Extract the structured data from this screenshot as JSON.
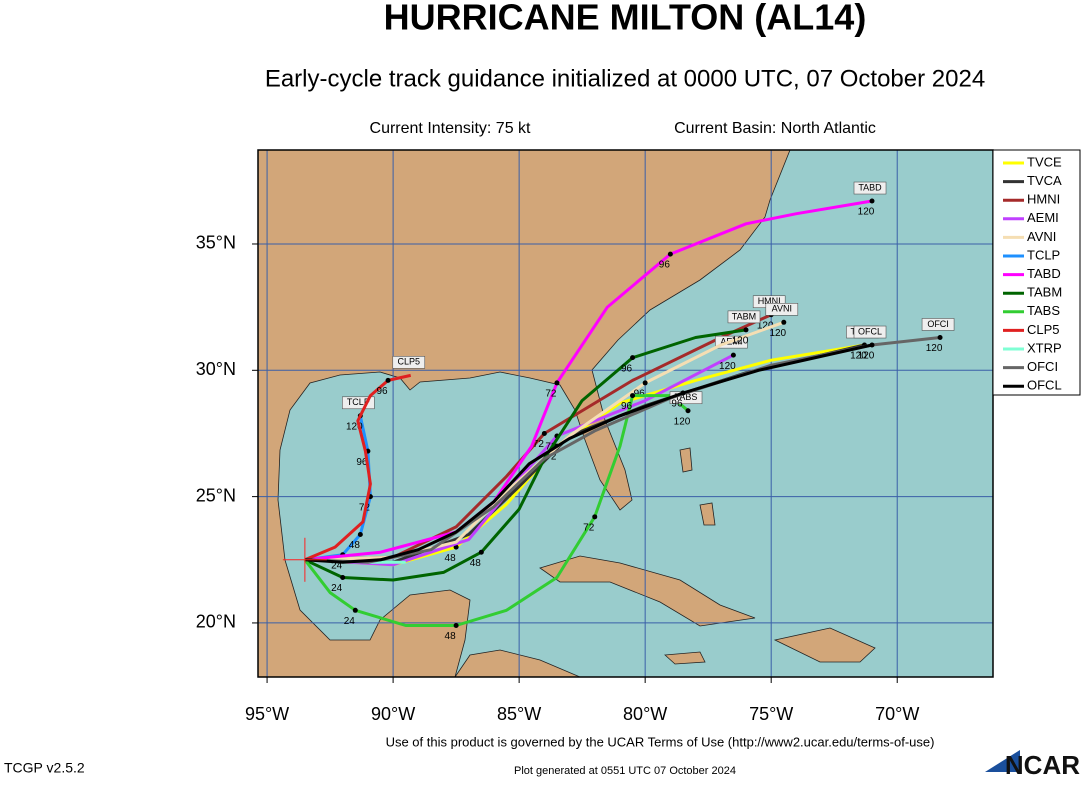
{
  "header": {
    "title": "HURRICANE MILTON (AL14)",
    "subtitle": "Early-cycle track guidance initialized at 0000 UTC, 07 October 2024",
    "intensity": "Current Intensity: 75 kt",
    "basin": "Current Basin: North Atlantic"
  },
  "footer": {
    "terms": "Use of this product is governed by the UCAR Terms of Use (http://www2.ucar.edu/terms-of-use)",
    "version": "TCGP v2.5.2",
    "generated": "Plot generated at 0551 UTC  07 October 2024",
    "logo": "NCAR"
  },
  "chart_data": {
    "type": "track-map",
    "xlim": [
      -95.36,
      -66.2
    ],
    "ylim": [
      17.86,
      38.72
    ],
    "xticks": [
      {
        "value": -95,
        "label": "95°W"
      },
      {
        "value": -90,
        "label": "90°W"
      },
      {
        "value": -85,
        "label": "85°W"
      },
      {
        "value": -80,
        "label": "80°W"
      },
      {
        "value": -75,
        "label": "75°W"
      },
      {
        "value": -70,
        "label": "70°W"
      }
    ],
    "yticks": [
      {
        "value": 20,
        "label": "20°N"
      },
      {
        "value": 25,
        "label": "25°N"
      },
      {
        "value": 30,
        "label": "30°N"
      },
      {
        "value": 35,
        "label": "35°N"
      }
    ],
    "grid": true,
    "legend": "upper right",
    "current_position": {
      "lon": -93.5,
      "lat": 22.5,
      "color": "#ff2020"
    },
    "series": [
      {
        "name": "TVCE",
        "color": "#ffff00",
        "map_label": false,
        "lon": [
          -93.5,
          -90,
          -87.5,
          -85.5,
          -83.5,
          -81,
          -78,
          -75,
          -71.3
        ],
        "lat": [
          22.5,
          22.3,
          23,
          24.7,
          27,
          28.7,
          29.6,
          30.4,
          31.0
        ],
        "hours": [
          null,
          null,
          48,
          null,
          72,
          null,
          null,
          null,
          null
        ]
      },
      {
        "name": "TVCA",
        "color": "#333333",
        "map_label": true,
        "lon": [
          -93.5,
          -90,
          -87,
          -85,
          -83,
          -80,
          -76,
          -71.3
        ],
        "lat": [
          22.5,
          22.4,
          23.5,
          25.4,
          27.4,
          28.6,
          29.9,
          31.0
        ],
        "hours": [
          null,
          null,
          null,
          null,
          null,
          null,
          null,
          120
        ]
      },
      {
        "name": "HMNI",
        "color": "#a52a2a",
        "map_label": true,
        "lon": [
          -93.5,
          -90,
          -87.5,
          -85.5,
          -84,
          -80.5,
          -77,
          -75
        ],
        "lat": [
          22.5,
          22.6,
          23.8,
          25.8,
          27.5,
          29.6,
          31.3,
          32.2
        ],
        "hours": [
          null,
          null,
          null,
          null,
          72,
          null,
          null,
          120
        ]
      },
      {
        "name": "AEMI",
        "color": "#c040ff",
        "map_label": true,
        "lon": [
          -93.5,
          -90,
          -87,
          -85,
          -83.5,
          -80,
          -76.5
        ],
        "lat": [
          22.5,
          22.3,
          23.3,
          25.7,
          27.4,
          28.8,
          30.6
        ],
        "hours": [
          null,
          null,
          null,
          null,
          72,
          null,
          120
        ]
      },
      {
        "name": "AVNI",
        "color": "#f5deb3",
        "map_label": true,
        "lon": [
          -93.5,
          -90,
          -87.5,
          -85.5,
          -83,
          -80,
          -77,
          -74.5
        ],
        "lat": [
          22.5,
          22.6,
          23.2,
          25.2,
          27.4,
          29.5,
          31.0,
          31.9
        ],
        "hours": [
          null,
          null,
          null,
          null,
          null,
          96,
          null,
          120
        ]
      },
      {
        "name": "TCLP",
        "color": "#1e90ff",
        "map_label": true,
        "lon": [
          -93.5,
          -92,
          -91.3,
          -90.9,
          -91,
          -91.3
        ],
        "lat": [
          22.5,
          22.7,
          23.5,
          25,
          26.8,
          28.2
        ],
        "hours": [
          null,
          24,
          48,
          72,
          96,
          120
        ]
      },
      {
        "name": "TABD",
        "color": "#ff00ff",
        "map_label": true,
        "lon": [
          -93.5,
          -90.5,
          -87.5,
          -86,
          -84.5,
          -83.5,
          -81.5,
          -79,
          -76,
          -74,
          -71
        ],
        "lat": [
          22.5,
          22.8,
          23.6,
          24.8,
          27,
          29.5,
          32.5,
          34.6,
          35.8,
          36.2,
          36.7
        ],
        "hours": [
          null,
          null,
          null,
          null,
          null,
          72,
          null,
          96,
          null,
          null,
          120
        ]
      },
      {
        "name": "TABM",
        "color": "#006400",
        "map_label": true,
        "lon": [
          -93.5,
          -92,
          -90,
          -88,
          -86.5,
          -85,
          -84,
          -82.5,
          -80.5,
          -78,
          -76
        ],
        "lat": [
          22.5,
          21.8,
          21.7,
          22,
          22.8,
          24.5,
          26.5,
          28.8,
          30.5,
          31.3,
          31.6
        ],
        "hours": [
          null,
          24,
          null,
          null,
          48,
          null,
          null,
          null,
          96,
          null,
          120
        ]
      },
      {
        "name": "TABS",
        "color": "#32cd32",
        "map_label": true,
        "lon": [
          -93.5,
          -92.5,
          -91.5,
          -89.5,
          -87.5,
          -85.5,
          -83.5,
          -82,
          -81,
          -80.5,
          -79,
          -78.3
        ],
        "lat": [
          22.5,
          21.2,
          20.5,
          19.9,
          19.9,
          20.5,
          21.8,
          24.2,
          27,
          29,
          29,
          28.4
        ],
        "hours": [
          null,
          null,
          24,
          null,
          48,
          null,
          null,
          72,
          null,
          96,
          null,
          120
        ]
      },
      {
        "name": "CLP5",
        "color": "#e02020",
        "map_label": true,
        "lon": [
          -93.5,
          -92.3,
          -91.2,
          -90.9,
          -91.1,
          -91.4,
          -90.9,
          -90.2,
          -89.3
        ],
        "lat": [
          22.5,
          23,
          24,
          25.5,
          26.8,
          28,
          29,
          29.6,
          29.8
        ],
        "hours": [
          null,
          null,
          null,
          null,
          null,
          null,
          null,
          96,
          null
        ]
      },
      {
        "name": "XTRP",
        "color": "#7fffd4",
        "map_label": false,
        "lon": [
          -93.5,
          -91,
          -89.5
        ],
        "lat": [
          22.5,
          22.4,
          22.4
        ],
        "hours": [
          null,
          null,
          null
        ]
      },
      {
        "name": "OFCI",
        "color": "#666666",
        "map_label": true,
        "lon": [
          -93.5,
          -91,
          -88.5,
          -86,
          -84,
          -82,
          -79,
          -75,
          -71,
          -68.3
        ],
        "lat": [
          22.5,
          22.4,
          22.9,
          24.6,
          26.5,
          27.6,
          28.9,
          30.2,
          31.0,
          31.3
        ],
        "hours": [
          null,
          null,
          null,
          null,
          null,
          null,
          null,
          null,
          null,
          120
        ]
      },
      {
        "name": "OFCL",
        "color": "#000000",
        "map_label": true,
        "lon": [
          -93.5,
          -92,
          -90.5,
          -89,
          -87.5,
          -86,
          -84.6,
          -83,
          -81,
          -78.5,
          -75.5,
          -71
        ],
        "lat": [
          22.5,
          22.4,
          22.5,
          22.9,
          23.6,
          24.8,
          26.3,
          27.3,
          28.2,
          29.1,
          30.0,
          31.0
        ],
        "hours": [
          null,
          null,
          null,
          null,
          null,
          null,
          null,
          null,
          null,
          96,
          null,
          120
        ]
      }
    ]
  }
}
